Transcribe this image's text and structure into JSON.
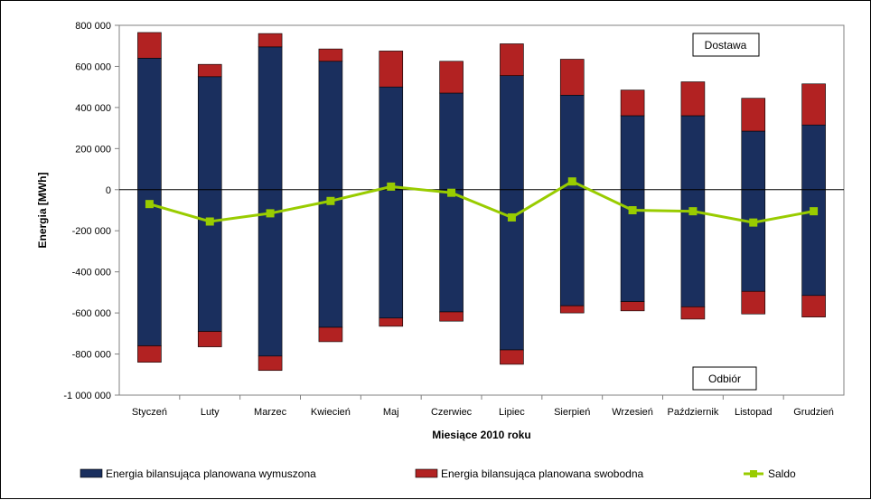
{
  "chart_data": {
    "type": "bar",
    "subtype": "stacked-bar-with-line",
    "categories": [
      "Styczeń",
      "Luty",
      "Marzec",
      "Kwiecień",
      "Maj",
      "Czerwiec",
      "Lipiec",
      "Sierpień",
      "Wrzesień",
      "Październik",
      "Listopad",
      "Grudzień"
    ],
    "series": [
      {
        "name": "Energia bilansująca planowana wymuszona",
        "kind": "bar",
        "color": "#1a2f5e",
        "positive": [
          640000,
          550000,
          695000,
          625000,
          500000,
          470000,
          555000,
          460000,
          360000,
          360000,
          285000,
          315000
        ],
        "negative": [
          -760000,
          -690000,
          -810000,
          -670000,
          -625000,
          -595000,
          -780000,
          -565000,
          -545000,
          -570000,
          -495000,
          -515000
        ]
      },
      {
        "name": "Energia bilansująca planowana swobodna",
        "kind": "bar",
        "color": "#b22222",
        "positive": [
          125000,
          60000,
          65000,
          60000,
          175000,
          155000,
          155000,
          175000,
          125000,
          165000,
          160000,
          200000
        ],
        "negative": [
          -80000,
          -75000,
          -70000,
          -70000,
          -40000,
          -45000,
          -70000,
          -35000,
          -45000,
          -60000,
          -110000,
          -105000
        ]
      },
      {
        "name": "Saldo",
        "kind": "line",
        "color": "#99cc00",
        "values": [
          -70000,
          -155000,
          -115000,
          -55000,
          15000,
          -15000,
          -135000,
          40000,
          -100000,
          -105000,
          -160000,
          -105000
        ]
      }
    ],
    "xlabel": "Miesiące 2010 roku",
    "ylabel": "Energia [MWh]",
    "ylim": [
      -1000000,
      800000
    ],
    "yticks": [
      800000,
      600000,
      400000,
      200000,
      0,
      -200000,
      -400000,
      -600000,
      -800000,
      -1000000
    ],
    "ytick_labels": [
      "800 000",
      "600 000",
      "400 000",
      "200 000",
      "0",
      "-200 000",
      "-400 000",
      "-600 000",
      "-800 000",
      "-1 000 000"
    ],
    "grid": "none",
    "legend_position": "bottom",
    "annotations": [
      "Dostawa",
      "Odbiór"
    ]
  }
}
